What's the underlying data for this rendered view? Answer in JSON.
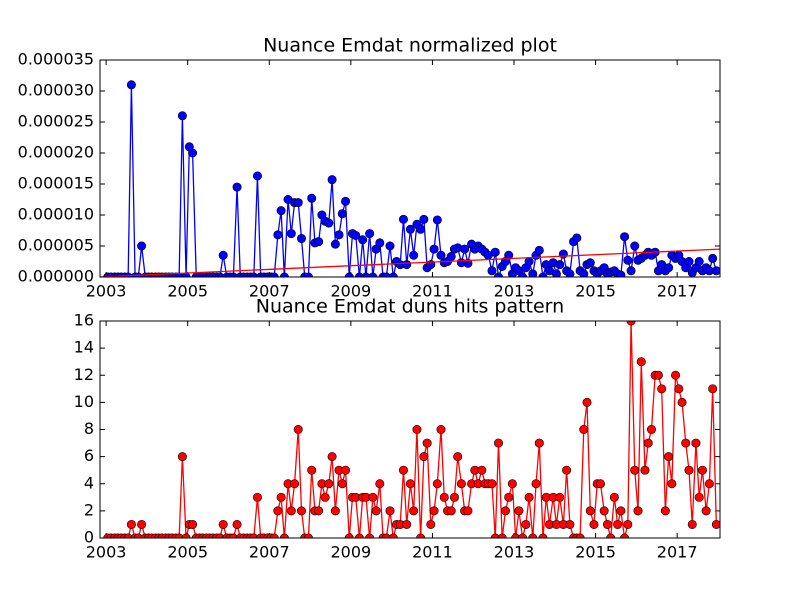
{
  "chart_data": [
    {
      "type": "line",
      "title": "Nuance Emdat normalized plot",
      "x": [
        2003.04,
        2003.12,
        2003.21,
        2003.29,
        2003.37,
        2003.46,
        2003.54,
        2003.62,
        2003.71,
        2003.79,
        2003.87,
        2003.96,
        2004.04,
        2004.12,
        2004.21,
        2004.29,
        2004.37,
        2004.46,
        2004.54,
        2004.62,
        2004.71,
        2004.79,
        2004.87,
        2004.96,
        2005.04,
        2005.12,
        2005.21,
        2005.29,
        2005.37,
        2005.46,
        2005.54,
        2005.62,
        2005.71,
        2005.79,
        2005.87,
        2005.96,
        2006.04,
        2006.12,
        2006.21,
        2006.29,
        2006.37,
        2006.46,
        2006.54,
        2006.62,
        2006.71,
        2006.79,
        2006.87,
        2006.96,
        2007.04,
        2007.12,
        2007.21,
        2007.29,
        2007.37,
        2007.46,
        2007.54,
        2007.62,
        2007.71,
        2007.79,
        2007.87,
        2007.96,
        2008.04,
        2008.12,
        2008.21,
        2008.29,
        2008.37,
        2008.46,
        2008.54,
        2008.62,
        2008.71,
        2008.79,
        2008.87,
        2008.96,
        2009.04,
        2009.12,
        2009.21,
        2009.29,
        2009.37,
        2009.46,
        2009.54,
        2009.62,
        2009.71,
        2009.79,
        2009.87,
        2009.96,
        2010.04,
        2010.12,
        2010.21,
        2010.29,
        2010.37,
        2010.46,
        2010.54,
        2010.62,
        2010.71,
        2010.79,
        2010.87,
        2010.96,
        2011.04,
        2011.12,
        2011.21,
        2011.29,
        2011.37,
        2011.46,
        2011.54,
        2011.62,
        2011.71,
        2011.79,
        2011.87,
        2011.96,
        2012.04,
        2012.12,
        2012.21,
        2012.29,
        2012.37,
        2012.46,
        2012.54,
        2012.62,
        2012.71,
        2012.79,
        2012.87,
        2012.96,
        2013.04,
        2013.12,
        2013.21,
        2013.29,
        2013.37,
        2013.46,
        2013.54,
        2013.62,
        2013.71,
        2013.79,
        2013.87,
        2013.96,
        2014.04,
        2014.12,
        2014.21,
        2014.29,
        2014.37,
        2014.46,
        2014.54,
        2014.62,
        2014.71,
        2014.79,
        2014.87,
        2014.96,
        2015.04,
        2015.12,
        2015.21,
        2015.29,
        2015.37,
        2015.46,
        2015.54,
        2015.62,
        2015.71,
        2015.79,
        2015.87,
        2015.96,
        2016.04,
        2016.12,
        2016.21,
        2016.29,
        2016.37,
        2016.46,
        2016.54,
        2016.62,
        2016.71,
        2016.79,
        2016.87,
        2016.96,
        2017.04,
        2017.12,
        2017.21,
        2017.29,
        2017.37,
        2017.46,
        2017.54,
        2017.62,
        2017.71,
        2017.79,
        2017.87,
        2017.96
      ],
      "series": [
        {
          "color": "#0000ff",
          "marker": true,
          "values": [
            0,
            0,
            0,
            0,
            0,
            0,
            0,
            3.1e-05,
            0,
            0,
            5e-06,
            0,
            0,
            0,
            0,
            0,
            0,
            0,
            0,
            0,
            0,
            0,
            2.6e-05,
            0,
            2.1e-05,
            2e-05,
            0,
            0,
            0,
            0,
            0,
            0,
            0,
            0,
            3.5e-06,
            0,
            0,
            0,
            1.45e-05,
            0,
            0,
            0,
            0,
            0,
            1.63e-05,
            0,
            0,
            0,
            0,
            0,
            6.8e-06,
            1.07e-05,
            0,
            1.25e-05,
            7e-06,
            1.2e-05,
            1.2e-05,
            6.2e-06,
            0,
            0,
            1.27e-05,
            5.5e-06,
            5.7e-06,
            1e-05,
            9e-06,
            8.7e-06,
            1.57e-05,
            5.3e-06,
            6.8e-06,
            1.02e-05,
            1.22e-05,
            0,
            7e-06,
            6.7e-06,
            0,
            6e-06,
            0,
            7e-06,
            0,
            4.5e-06,
            5.5e-06,
            0,
            0,
            5e-06,
            0,
            2.5e-06,
            2e-06,
            9.3e-06,
            2e-06,
            7.7e-06,
            3.5e-06,
            8.5e-06,
            7.7e-06,
            9.3e-06,
            1.5e-06,
            2e-06,
            4.5e-06,
            9.2e-06,
            3.5e-06,
            2.3e-06,
            2.5e-06,
            3.3e-06,
            4.5e-06,
            4.7e-06,
            2.3e-06,
            4.5e-06,
            2.2e-06,
            5.3e-06,
            4.5e-06,
            5e-06,
            4.5e-06,
            4e-06,
            3.5e-06,
            1e-06,
            4e-06,
            0,
            1.7e-06,
            2.5e-06,
            3.5e-06,
            5e-07,
            1.5e-06,
            1e-06,
            0,
            1.5e-06,
            2.5e-06,
            5e-07,
            3.5e-06,
            4.3e-06,
            0,
            2e-06,
            1e-06,
            2.3e-06,
            5e-07,
            2e-06,
            3.7e-06,
            1e-06,
            5e-07,
            5.7e-06,
            6.3e-06,
            1e-06,
            5e-07,
            2e-06,
            2.3e-06,
            1e-06,
            5e-07,
            1e-06,
            1.5e-06,
            5e-07,
            8e-07,
            1e-06,
            5e-07,
            3e-07,
            6.5e-06,
            2.7e-06,
            1e-06,
            5e-06,
            2.7e-06,
            3e-06,
            3.5e-06,
            4e-06,
            3.5e-06,
            4e-06,
            1e-06,
            2e-06,
            1e-06,
            1.5e-06,
            3.5e-06,
            3e-06,
            3.5e-06,
            2.5e-06,
            1.5e-06,
            2.5e-06,
            7e-07,
            1.5e-06,
            2.5e-06,
            1e-06,
            1.5e-06,
            1e-06,
            3e-06,
            1e-06
          ]
        },
        {
          "color": "#ff0000",
          "marker": false,
          "x": [
            2002.85,
            2018.05
          ],
          "values": [
            0,
            4.5e-06
          ]
        }
      ],
      "xlim": [
        2002.85,
        2018.05
      ],
      "xticks": [
        2003,
        2005,
        2007,
        2009,
        2011,
        2013,
        2015,
        2017
      ],
      "ylim": [
        0,
        3.5e-05
      ],
      "yticks": [
        {
          "value": 0,
          "label": "0.000000"
        },
        {
          "value": 5e-06,
          "label": "0.000005"
        },
        {
          "value": 1e-05,
          "label": "0.000010"
        },
        {
          "value": 1.5e-05,
          "label": "0.000015"
        },
        {
          "value": 2e-05,
          "label": "0.000020"
        },
        {
          "value": 2.5e-05,
          "label": "0.000025"
        },
        {
          "value": 3e-05,
          "label": "0.000030"
        },
        {
          "value": 3.5e-05,
          "label": "0.000035"
        }
      ],
      "grid": false
    },
    {
      "type": "line",
      "title": "Nuance Emdat duns hits pattern",
      "x": [
        2003.04,
        2003.12,
        2003.21,
        2003.29,
        2003.37,
        2003.46,
        2003.54,
        2003.62,
        2003.71,
        2003.79,
        2003.87,
        2003.96,
        2004.04,
        2004.12,
        2004.21,
        2004.29,
        2004.37,
        2004.46,
        2004.54,
        2004.62,
        2004.71,
        2004.79,
        2004.87,
        2004.96,
        2005.04,
        2005.12,
        2005.21,
        2005.29,
        2005.37,
        2005.46,
        2005.54,
        2005.62,
        2005.71,
        2005.79,
        2005.87,
        2005.96,
        2006.04,
        2006.12,
        2006.21,
        2006.29,
        2006.37,
        2006.46,
        2006.54,
        2006.62,
        2006.71,
        2006.79,
        2006.87,
        2006.96,
        2007.04,
        2007.12,
        2007.21,
        2007.29,
        2007.37,
        2007.46,
        2007.54,
        2007.62,
        2007.71,
        2007.79,
        2007.87,
        2007.96,
        2008.04,
        2008.12,
        2008.21,
        2008.29,
        2008.37,
        2008.46,
        2008.54,
        2008.62,
        2008.71,
        2008.79,
        2008.87,
        2008.96,
        2009.04,
        2009.12,
        2009.21,
        2009.29,
        2009.37,
        2009.46,
        2009.54,
        2009.62,
        2009.71,
        2009.79,
        2009.87,
        2009.96,
        2010.04,
        2010.12,
        2010.21,
        2010.29,
        2010.37,
        2010.46,
        2010.54,
        2010.62,
        2010.71,
        2010.79,
        2010.87,
        2010.96,
        2011.04,
        2011.12,
        2011.21,
        2011.29,
        2011.37,
        2011.46,
        2011.54,
        2011.62,
        2011.71,
        2011.79,
        2011.87,
        2011.96,
        2012.04,
        2012.12,
        2012.21,
        2012.29,
        2012.37,
        2012.46,
        2012.54,
        2012.62,
        2012.71,
        2012.79,
        2012.87,
        2012.96,
        2013.04,
        2013.12,
        2013.21,
        2013.29,
        2013.37,
        2013.46,
        2013.54,
        2013.62,
        2013.71,
        2013.79,
        2013.87,
        2013.96,
        2014.04,
        2014.12,
        2014.21,
        2014.29,
        2014.37,
        2014.46,
        2014.54,
        2014.62,
        2014.71,
        2014.79,
        2014.87,
        2014.96,
        2015.04,
        2015.12,
        2015.21,
        2015.29,
        2015.37,
        2015.46,
        2015.54,
        2015.62,
        2015.71,
        2015.79,
        2015.87,
        2015.96,
        2016.04,
        2016.12,
        2016.21,
        2016.29,
        2016.37,
        2016.46,
        2016.54,
        2016.62,
        2016.71,
        2016.79,
        2016.87,
        2016.96,
        2017.04,
        2017.12,
        2017.21,
        2017.29,
        2017.37,
        2017.46,
        2017.54,
        2017.62,
        2017.71,
        2017.79,
        2017.87,
        2017.96
      ],
      "series": [
        {
          "color": "#ff0000",
          "marker": true,
          "values": [
            0,
            0,
            0,
            0,
            0,
            0,
            0,
            1,
            0,
            0,
            1,
            0,
            0,
            0,
            0,
            0,
            0,
            0,
            0,
            0,
            0,
            0,
            6,
            0,
            1,
            1,
            0,
            0,
            0,
            0,
            0,
            0,
            0,
            0,
            1,
            0,
            0,
            0,
            1,
            0,
            0,
            0,
            0,
            0,
            3,
            0,
            0,
            0,
            0,
            0,
            2,
            3,
            0,
            4,
            2,
            4,
            8,
            2,
            0,
            0,
            5,
            2,
            2,
            4,
            3,
            4,
            6,
            2,
            5,
            4,
            5,
            0,
            3,
            3,
            0,
            3,
            3,
            0,
            3,
            2,
            4,
            0,
            0,
            2,
            0,
            1,
            1,
            5,
            1,
            4,
            2,
            8,
            0,
            6,
            7,
            1,
            2,
            4,
            8,
            3,
            2,
            2,
            3,
            6,
            4,
            2,
            2,
            4,
            5,
            4,
            5,
            4,
            4,
            4,
            0,
            7,
            0,
            2,
            3,
            4,
            0,
            2,
            0,
            1,
            3,
            0,
            4,
            7,
            0,
            3,
            1,
            3,
            1,
            3,
            1,
            5,
            1,
            0,
            0,
            0,
            8,
            10,
            2,
            1,
            4,
            4,
            2,
            1,
            0,
            3,
            1,
            2,
            0,
            1,
            16,
            5,
            2,
            13,
            5,
            7,
            8,
            12,
            12,
            11,
            2,
            6,
            4,
            12,
            11,
            10,
            7,
            5,
            1,
            7,
            3,
            5,
            2,
            4,
            11,
            1
          ]
        }
      ],
      "xlim": [
        2002.85,
        2018.05
      ],
      "xticks": [
        2003,
        2005,
        2007,
        2009,
        2011,
        2013,
        2015,
        2017
      ],
      "ylim": [
        0,
        16
      ],
      "yticks": [
        0,
        2,
        4,
        6,
        8,
        10,
        12,
        14,
        16
      ],
      "grid": false
    }
  ]
}
